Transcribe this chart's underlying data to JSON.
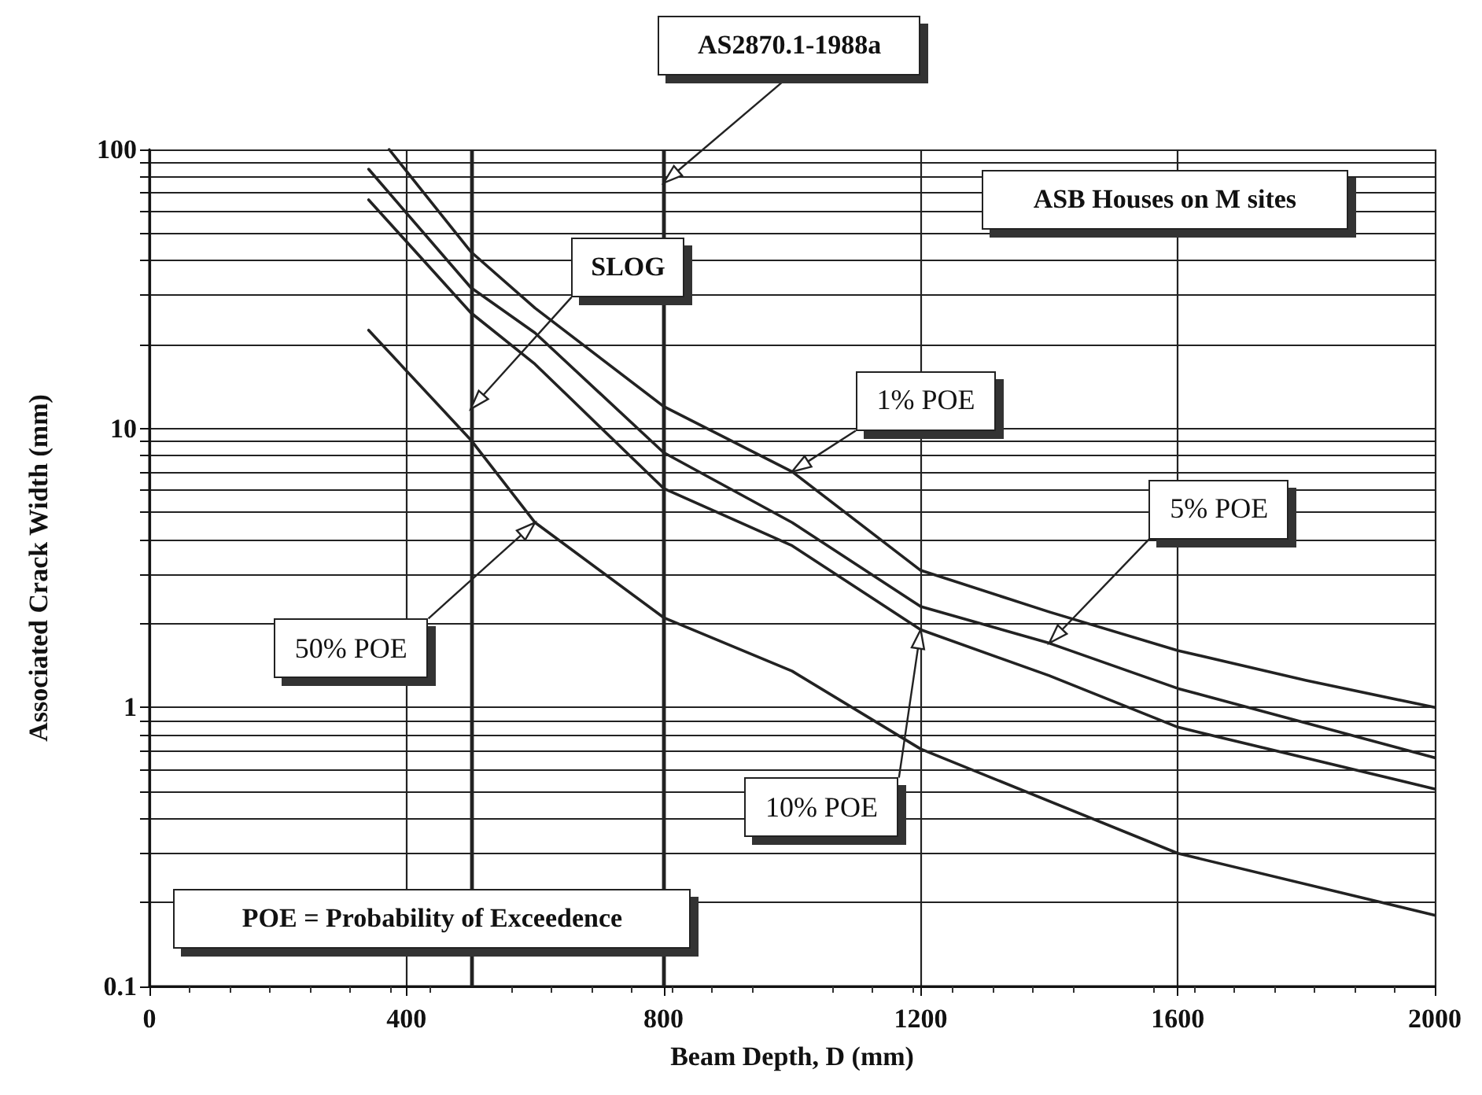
{
  "chart_data": {
    "type": "line",
    "xlabel": "Beam Depth, D (mm)",
    "ylabel": "Associated Crack Width (mm)",
    "xlim": [
      0,
      2000
    ],
    "xticks": [
      0,
      400,
      800,
      1200,
      1600,
      2000
    ],
    "ylim": [
      0.1,
      100
    ],
    "log": "y",
    "yticks": [
      0.1,
      {
        "value": 0.2,
        "label": null
      },
      {
        "value": 0.3,
        "label": null
      },
      {
        "value": 0.4,
        "label": null
      },
      {
        "value": 0.5,
        "label": null
      },
      {
        "value": 0.6,
        "label": null
      },
      {
        "value": 0.7,
        "label": null
      },
      {
        "value": 0.8,
        "label": null
      },
      {
        "value": 0.9,
        "label": null
      },
      1,
      {
        "value": 2,
        "label": null
      },
      {
        "value": 3,
        "label": null
      },
      {
        "value": 4,
        "label": null
      },
      {
        "value": 5,
        "label": null
      },
      {
        "value": 6,
        "label": null
      },
      {
        "value": 7,
        "label": null
      },
      {
        "value": 8,
        "label": null
      },
      {
        "value": 9,
        "label": null
      },
      10,
      {
        "value": 20,
        "label": null
      },
      {
        "value": 30,
        "label": null
      },
      {
        "value": 40,
        "label": null
      },
      {
        "value": 50,
        "label": null
      },
      {
        "value": 60,
        "label": null
      },
      {
        "value": 70,
        "label": null
      },
      {
        "value": 80,
        "label": null
      },
      {
        "value": 90,
        "label": null
      },
      100
    ],
    "grid": true,
    "legend": false,
    "marker": "none",
    "line_style": "solid",
    "series": [
      {
        "name": "1% POE",
        "color": "#222222",
        "x": [
          373,
          500,
          600,
          800,
          1000,
          1200,
          1400,
          1600,
          1800,
          2000
        ],
        "values": [
          100,
          43,
          27,
          12,
          7,
          3.1,
          2.2,
          1.6,
          1.25,
          1.0
        ]
      },
      {
        "name": "5% POE",
        "color": "#222222",
        "x": [
          341,
          500,
          600,
          800,
          1000,
          1200,
          1400,
          1600,
          2000
        ],
        "values": [
          85,
          32,
          22,
          8.2,
          4.6,
          2.3,
          1.7,
          1.17,
          0.66
        ]
      },
      {
        "name": "10% POE",
        "color": "#222222",
        "x": [
          341,
          500,
          600,
          800,
          1000,
          1200,
          1400,
          1600,
          2000
        ],
        "values": [
          66,
          26,
          17,
          6.1,
          3.8,
          1.9,
          1.3,
          0.85,
          0.51
        ]
      },
      {
        "name": "50% POE",
        "color": "#222222",
        "x": [
          341,
          500,
          600,
          800,
          1000,
          1200,
          1600,
          2000
        ],
        "values": [
          22.5,
          9.1,
          4.6,
          2.1,
          1.35,
          0.71,
          0.3,
          0.18
        ]
      }
    ],
    "ref_lines": [
      {
        "axis": "x",
        "value": 500,
        "label": "SLOG",
        "color": "#222222"
      },
      {
        "axis": "x",
        "value": 800,
        "label": "AS2870.1-1988a",
        "color": "#222222"
      }
    ],
    "annotations": [
      "ASB Houses on M sites",
      "POE = Probability of Exceedence"
    ]
  }
}
